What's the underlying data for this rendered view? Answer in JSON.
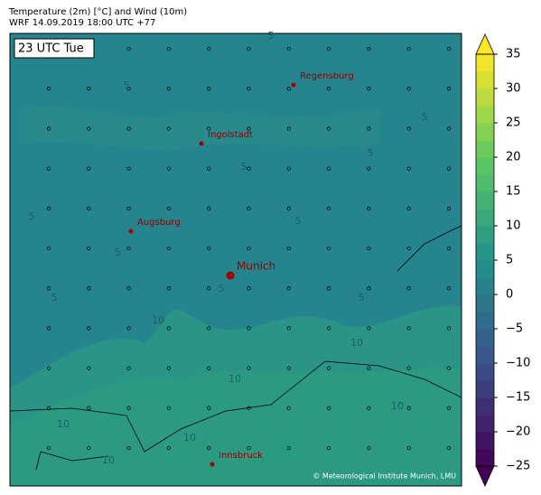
{
  "header": {
    "line1": "Temperature (2m) [°C] and Wind (10m)",
    "line2": "WRF 14.09.2019 18:00 UTC +77"
  },
  "time_label": "23 UTC Tue",
  "cities": [
    "Regensburg",
    "Ingolstadt",
    "Augsburg",
    "Munich",
    "Innsbruck"
  ],
  "colorbar": {
    "range": [
      -25,
      35
    ],
    "ticks": [
      35,
      30,
      25,
      20,
      15,
      10,
      5,
      0,
      {
        "value": -5,
        "label": "−5"
      },
      {
        "value": -10,
        "label": "−10"
      },
      {
        "value": -15,
        "label": "−15"
      },
      {
        "value": -20,
        "label": "−20"
      },
      {
        "value": -25,
        "label": "−25"
      }
    ]
  },
  "contour_labels": [
    5,
    5,
    5,
    5,
    5,
    5,
    5,
    5,
    5,
    10,
    10,
    10,
    10,
    10,
    10,
    10,
    5,
    5
  ],
  "credit": "© Meteorological Institute Munich, LMU"
}
